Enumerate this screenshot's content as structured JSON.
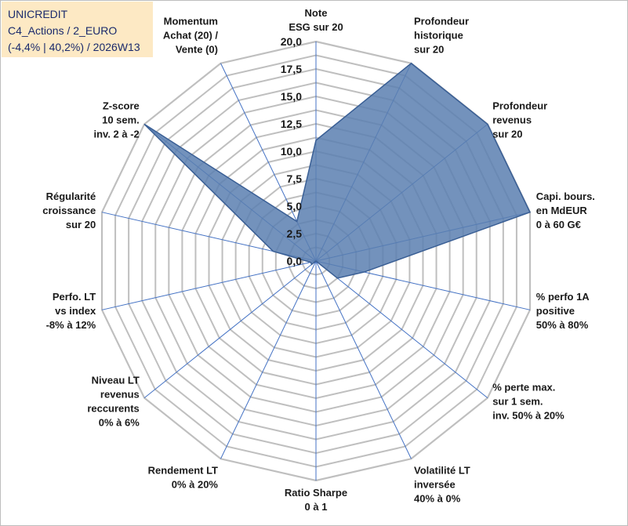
{
  "info_box": {
    "line1": "UNICREDIT",
    "line2": "C4_Actions / 2_EURO",
    "line3": "(-4,4% | 40,2%) / 2026W13"
  },
  "colors": {
    "fill": "#5b7fb0",
    "outline": "#3a5f95",
    "grid": "#bfbfbf",
    "spokes": "#4472c4",
    "info_bg": "#fde9c4",
    "info_text": "#1a2a6c"
  },
  "chart_data": {
    "type": "radar",
    "title": "",
    "rmin": 0,
    "rmax": 20,
    "tick_values": [
      0,
      2.5,
      5,
      7.5,
      10,
      12.5,
      15,
      17.5,
      20
    ],
    "tick_labels": [
      "0,0",
      "2,5",
      "5,0",
      "7,5",
      "10,0",
      "12,5",
      "15,0",
      "17,5",
      "20,0"
    ],
    "gridlines": 16,
    "categories": [
      {
        "lines": [
          "Note",
          "ESG sur 20"
        ]
      },
      {
        "lines": [
          "Profondeur",
          "historique",
          "sur 20"
        ]
      },
      {
        "lines": [
          "Profondeur",
          "revenus",
          "sur 20"
        ]
      },
      {
        "lines": [
          "Capi. bours.",
          "en MdEUR",
          "0 à 60 G€"
        ]
      },
      {
        "lines": [
          "% perfo 1A",
          "positive",
          "50% à 80%"
        ]
      },
      {
        "lines": [
          "% perte max.",
          "sur 1 sem.",
          "inv. 50% à 20%"
        ]
      },
      {
        "lines": [
          "Volatilité LT",
          "inversée",
          "40% à 0%"
        ]
      },
      {
        "lines": [
          "Ratio Sharpe",
          "0 à 1"
        ]
      },
      {
        "lines": [
          "Rendement LT",
          "0% à 20%"
        ]
      },
      {
        "lines": [
          "Niveau LT",
          "revenus",
          "reccurents",
          "0% à 6%"
        ]
      },
      {
        "lines": [
          "Perfo. LT",
          "vs index",
          "-8% à 12%"
        ]
      },
      {
        "lines": [
          "Régularité",
          "croissance",
          "sur 20"
        ]
      },
      {
        "lines": [
          "Z-score",
          "10 sem.",
          "inv. 2 à -2"
        ]
      },
      {
        "lines": [
          "Momentum",
          "Achat (20) /",
          "Vente (0)"
        ]
      }
    ],
    "series": [
      {
        "name": "UNICREDIT",
        "values": [
          11,
          20,
          20,
          20,
          4.5,
          2.5,
          0,
          0,
          0,
          0.5,
          0.5,
          4,
          20,
          4
        ]
      }
    ]
  }
}
